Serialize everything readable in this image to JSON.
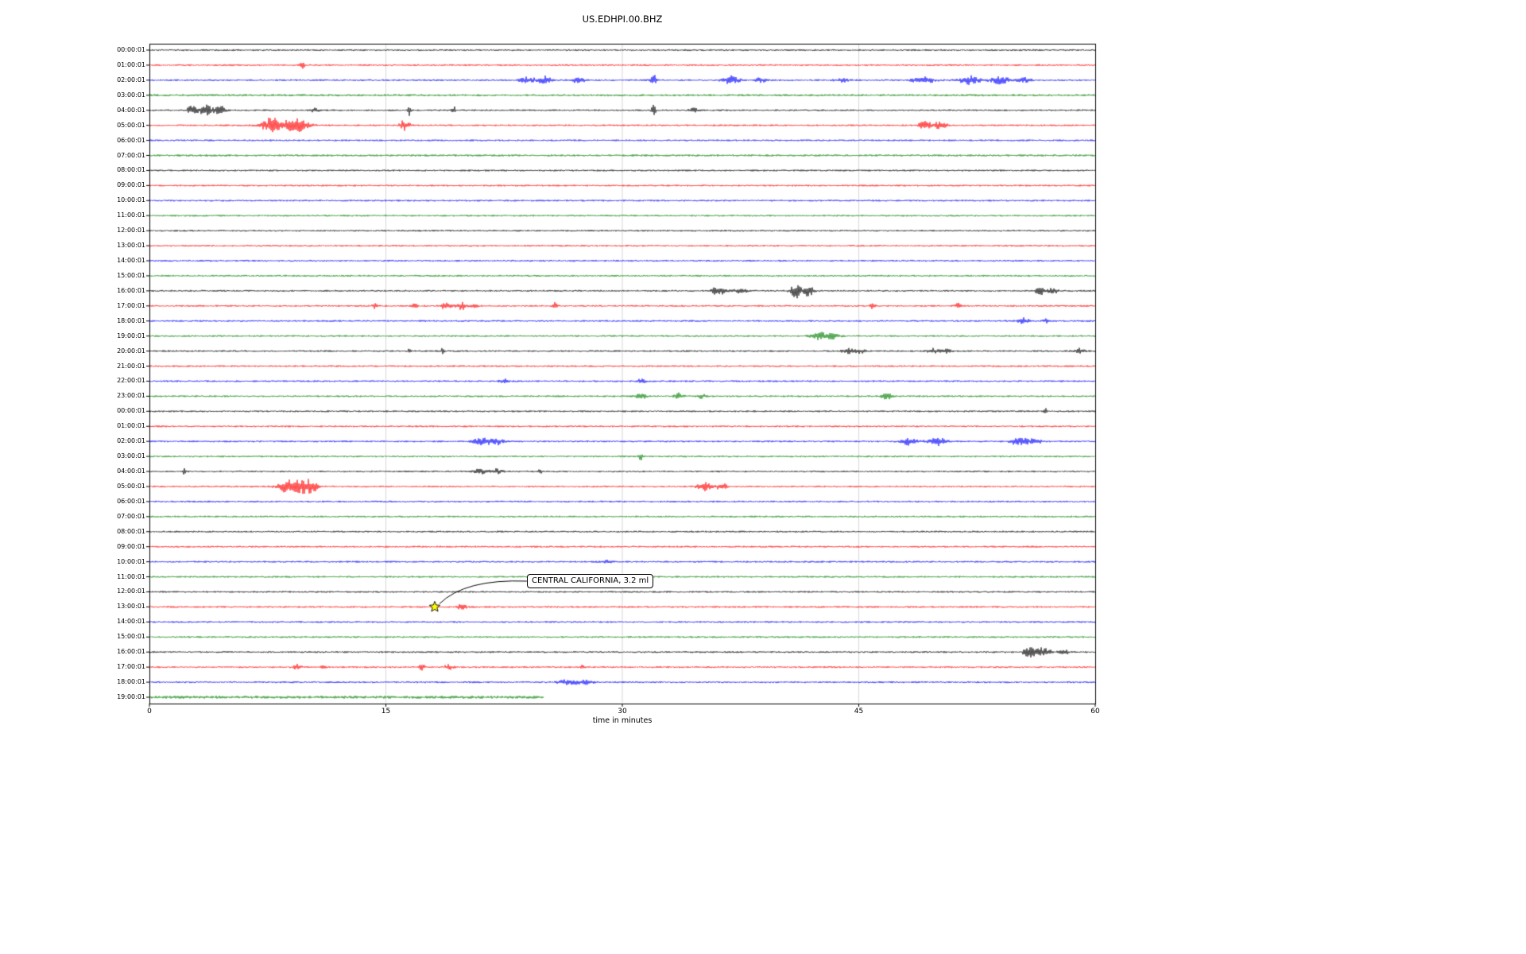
{
  "title": "US.EDHPI.00.BHZ",
  "annotation": {
    "text": "CENTRAL CALIFORNIA, 3.2 ml",
    "row_index": 37,
    "minute": 18.1
  },
  "chart_data": {
    "type": "line",
    "kind": "seismogram-dayplot",
    "station": "US.EDHPI.00.BHZ",
    "title": "US.EDHPI.00.BHZ",
    "xlabel": "time in minutes",
    "xlim": [
      0,
      60
    ],
    "x_ticks": [
      0,
      15,
      30,
      45,
      60
    ],
    "grid_minutes": [
      15,
      30,
      45
    ],
    "grid_color": "#cccccc",
    "frame_color": "#000000",
    "color_map": {
      "black": "#000000",
      "red": "#ff0000",
      "blue": "#0000ff",
      "green": "#008000"
    },
    "event_marker": {
      "shape": "star",
      "color": "#ffff00",
      "edge_color": "#000000",
      "row_index": 37,
      "minute": 18.1
    },
    "rows": [
      {
        "label": "00:00:01",
        "color": "black",
        "events": []
      },
      {
        "label": "01:00:01",
        "color": "red",
        "events": [
          {
            "t": 9.7,
            "a": 3.5,
            "w": 0.1
          }
        ]
      },
      {
        "label": "02:00:01",
        "color": "blue",
        "events": [
          {
            "t": 24,
            "a": 4,
            "w": 0.35
          },
          {
            "t": 25.1,
            "a": 5,
            "w": 0.3
          },
          {
            "t": 27.2,
            "a": 4,
            "w": 0.25
          },
          {
            "t": 32,
            "a": 6,
            "w": 0.15
          },
          {
            "t": 36.9,
            "a": 5,
            "w": 0.35
          },
          {
            "t": 38.8,
            "a": 3,
            "w": 0.25
          },
          {
            "t": 44,
            "a": 2.5,
            "w": 0.3
          },
          {
            "t": 49.1,
            "a": 5,
            "w": 0.45
          },
          {
            "t": 52.1,
            "a": 5,
            "w": 0.5
          },
          {
            "t": 54,
            "a": 4.5,
            "w": 0.4
          },
          {
            "t": 55.5,
            "a": 3,
            "w": 0.3
          }
        ]
      },
      {
        "label": "03:00:01",
        "color": "green",
        "base": 1.2,
        "events": []
      },
      {
        "label": "04:00:01",
        "color": "black",
        "events": [
          {
            "t": 2.7,
            "a": 5,
            "w": 0.25
          },
          {
            "t": 3.6,
            "a": 6,
            "w": 0.3
          },
          {
            "t": 4.5,
            "a": 5,
            "w": 0.25
          },
          {
            "t": 10.5,
            "a": 2.5,
            "w": 0.15
          },
          {
            "t": 16.5,
            "a": 6,
            "w": 0.07
          },
          {
            "t": 19.3,
            "a": 6,
            "w": 0.07
          },
          {
            "t": 32,
            "a": 16,
            "w": 0.07
          },
          {
            "t": 34.5,
            "a": 2.5,
            "w": 0.2
          }
        ]
      },
      {
        "label": "05:00:01",
        "color": "red",
        "events": [
          {
            "t": 7.8,
            "a": 10,
            "w": 0.45
          },
          {
            "t": 9.3,
            "a": 8,
            "w": 0.55
          },
          {
            "t": 16.2,
            "a": 7,
            "w": 0.2
          },
          {
            "t": 49.2,
            "a": 5,
            "w": 0.3
          },
          {
            "t": 50.2,
            "a": 6,
            "w": 0.25
          }
        ]
      },
      {
        "label": "06:00:01",
        "color": "blue",
        "events": []
      },
      {
        "label": "07:00:01",
        "color": "green",
        "base": 1.15,
        "events": []
      },
      {
        "label": "08:00:01",
        "color": "black",
        "events": []
      },
      {
        "label": "09:00:01",
        "color": "red",
        "events": []
      },
      {
        "label": "10:00:01",
        "color": "blue",
        "events": []
      },
      {
        "label": "11:00:01",
        "color": "green",
        "events": []
      },
      {
        "label": "12:00:01",
        "color": "black",
        "events": []
      },
      {
        "label": "13:00:01",
        "color": "red",
        "events": []
      },
      {
        "label": "14:00:01",
        "color": "blue",
        "events": []
      },
      {
        "label": "15:00:01",
        "color": "green",
        "events": []
      },
      {
        "label": "16:00:01",
        "color": "black",
        "events": [
          {
            "t": 35.8,
            "a": 6,
            "w": 0.08
          },
          {
            "t": 36.2,
            "a": 4,
            "w": 0.3
          },
          {
            "t": 37.5,
            "a": 3.5,
            "w": 0.25
          },
          {
            "t": 41,
            "a": 9,
            "w": 0.25
          },
          {
            "t": 41.8,
            "a": 8,
            "w": 0.2
          },
          {
            "t": 56.5,
            "a": 4.5,
            "w": 0.25
          },
          {
            "t": 57.3,
            "a": 4,
            "w": 0.2
          }
        ]
      },
      {
        "label": "17:00:01",
        "color": "red",
        "events": [
          {
            "t": 14.3,
            "a": 3.5,
            "w": 0.1
          },
          {
            "t": 16.8,
            "a": 3.5,
            "w": 0.12
          },
          {
            "t": 18.8,
            "a": 4,
            "w": 0.25
          },
          {
            "t": 19.8,
            "a": 4.5,
            "w": 0.2
          },
          {
            "t": 20.6,
            "a": 3.5,
            "w": 0.15
          },
          {
            "t": 25.7,
            "a": 4,
            "w": 0.12
          },
          {
            "t": 45.9,
            "a": 3.5,
            "w": 0.12
          },
          {
            "t": 51.3,
            "a": 3.5,
            "w": 0.12
          }
        ]
      },
      {
        "label": "18:00:01",
        "color": "blue",
        "events": [
          {
            "t": 55.5,
            "a": 3.5,
            "w": 0.3
          },
          {
            "t": 57,
            "a": 2.5,
            "w": 0.2
          }
        ]
      },
      {
        "label": "19:00:01",
        "color": "green",
        "events": [
          {
            "t": 42.5,
            "a": 4.5,
            "w": 0.35
          },
          {
            "t": 43.4,
            "a": 3.5,
            "w": 0.25
          }
        ]
      },
      {
        "label": "20:00:01",
        "color": "black",
        "events": [
          {
            "t": 16.5,
            "a": 3.5,
            "w": 0.08
          },
          {
            "t": 18.6,
            "a": 3.5,
            "w": 0.08
          },
          {
            "t": 44.3,
            "a": 3.5,
            "w": 0.3
          },
          {
            "t": 45.1,
            "a": 2.5,
            "w": 0.2
          },
          {
            "t": 49.7,
            "a": 3.5,
            "w": 0.25
          },
          {
            "t": 50.6,
            "a": 2.5,
            "w": 0.2
          },
          {
            "t": 59,
            "a": 3.5,
            "w": 0.2
          }
        ]
      },
      {
        "label": "21:00:01",
        "color": "red",
        "events": []
      },
      {
        "label": "22:00:01",
        "color": "blue",
        "events": [
          {
            "t": 22.5,
            "a": 2.5,
            "w": 0.2
          },
          {
            "t": 31.2,
            "a": 3.5,
            "w": 0.2
          }
        ]
      },
      {
        "label": "23:00:01",
        "color": "green",
        "events": [
          {
            "t": 31.2,
            "a": 3.5,
            "w": 0.25
          },
          {
            "t": 33.6,
            "a": 4,
            "w": 0.2
          },
          {
            "t": 35,
            "a": 3,
            "w": 0.2
          },
          {
            "t": 46.8,
            "a": 3.5,
            "w": 0.25
          }
        ]
      },
      {
        "label": "00:00:01",
        "color": "black",
        "events": [
          {
            "t": 56.8,
            "a": 4.5,
            "w": 0.08
          }
        ]
      },
      {
        "label": "01:00:01",
        "color": "red",
        "events": []
      },
      {
        "label": "02:00:01",
        "color": "blue",
        "events": [
          {
            "t": 21,
            "a": 4.5,
            "w": 0.3
          },
          {
            "t": 21.9,
            "a": 5,
            "w": 0.35
          },
          {
            "t": 48.3,
            "a": 4.5,
            "w": 0.4
          },
          {
            "t": 50,
            "a": 5,
            "w": 0.35
          },
          {
            "t": 55.2,
            "a": 5,
            "w": 0.4
          },
          {
            "t": 56.2,
            "a": 4,
            "w": 0.3
          }
        ]
      },
      {
        "label": "03:00:01",
        "color": "green",
        "events": [
          {
            "t": 31.2,
            "a": 5,
            "w": 0.1
          }
        ]
      },
      {
        "label": "04:00:01",
        "color": "black",
        "events": [
          {
            "t": 2.2,
            "a": 4,
            "w": 0.08
          },
          {
            "t": 21,
            "a": 3,
            "w": 0.3
          },
          {
            "t": 22,
            "a": 3,
            "w": 0.3
          },
          {
            "t": 24.8,
            "a": 4,
            "w": 0.08
          }
        ]
      },
      {
        "label": "05:00:01",
        "color": "red",
        "events": [
          {
            "t": 8.7,
            "a": 7,
            "w": 0.4
          },
          {
            "t": 9.6,
            "a": 8,
            "w": 0.4
          },
          {
            "t": 10.3,
            "a": 6,
            "w": 0.3
          },
          {
            "t": 35.2,
            "a": 5,
            "w": 0.3
          },
          {
            "t": 36.3,
            "a": 4,
            "w": 0.25
          }
        ]
      },
      {
        "label": "06:00:01",
        "color": "blue",
        "events": []
      },
      {
        "label": "07:00:01",
        "color": "green",
        "events": []
      },
      {
        "label": "08:00:01",
        "color": "black",
        "events": []
      },
      {
        "label": "09:00:01",
        "color": "red",
        "events": []
      },
      {
        "label": "10:00:01",
        "color": "blue",
        "events": [
          {
            "t": 29,
            "a": 1.5,
            "w": 0.3
          }
        ]
      },
      {
        "label": "11:00:01",
        "color": "green",
        "events": []
      },
      {
        "label": "12:00:01",
        "color": "black",
        "events": []
      },
      {
        "label": "13:00:01",
        "color": "red",
        "events": [
          {
            "t": 19.8,
            "a": 3.5,
            "w": 0.2
          }
        ]
      },
      {
        "label": "14:00:01",
        "color": "blue",
        "events": []
      },
      {
        "label": "15:00:01",
        "color": "green",
        "events": []
      },
      {
        "label": "16:00:01",
        "color": "black",
        "events": [
          {
            "t": 55.8,
            "a": 7,
            "w": 0.25
          },
          {
            "t": 56.7,
            "a": 5,
            "w": 0.35
          },
          {
            "t": 58,
            "a": 3.5,
            "w": 0.2
          }
        ]
      },
      {
        "label": "17:00:01",
        "color": "red",
        "events": [
          {
            "t": 9.4,
            "a": 3.5,
            "w": 0.15
          },
          {
            "t": 11,
            "a": 2.5,
            "w": 0.12
          },
          {
            "t": 17.3,
            "a": 3.5,
            "w": 0.12
          },
          {
            "t": 19,
            "a": 3.5,
            "w": 0.18
          },
          {
            "t": 27.5,
            "a": 2.5,
            "w": 0.12
          }
        ]
      },
      {
        "label": "18:00:01",
        "color": "blue",
        "events": [
          {
            "t": 26.5,
            "a": 3,
            "w": 0.4
          },
          {
            "t": 27.6,
            "a": 3,
            "w": 0.4
          }
        ]
      },
      {
        "label": "19:00:01",
        "color": "green",
        "end": 25,
        "base": 1.6,
        "events": []
      }
    ]
  }
}
